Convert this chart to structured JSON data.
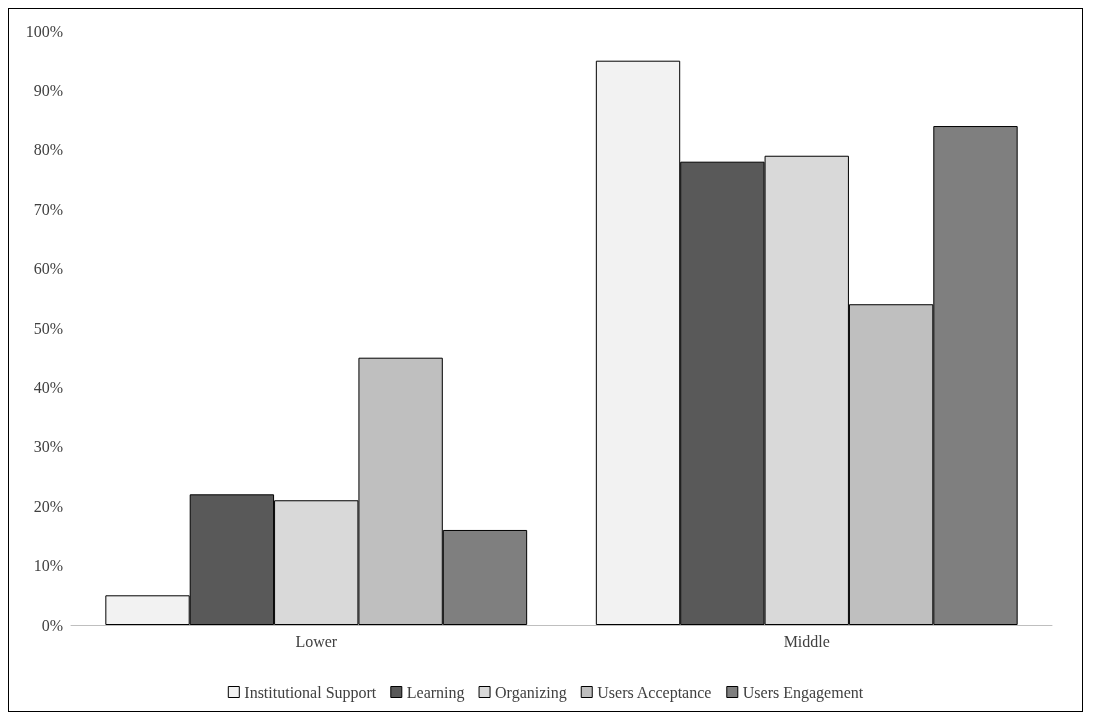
{
  "chart_data": {
    "type": "bar",
    "categories": [
      "Lower",
      "Middle"
    ],
    "series": [
      {
        "name": "Institutional Support",
        "color": "#f2f2f2",
        "values": [
          5,
          95
        ]
      },
      {
        "name": "Learning",
        "color": "#595959",
        "values": [
          22,
          78
        ]
      },
      {
        "name": "Organizing",
        "color": "#d9d9d9",
        "values": [
          21,
          79
        ]
      },
      {
        "name": "Users Acceptance",
        "color": "#bfbfbf",
        "values": [
          45,
          54
        ]
      },
      {
        "name": "Users Engagement",
        "color": "#7f7f7f",
        "values": [
          16,
          84
        ]
      }
    ],
    "ylim": [
      0,
      100
    ],
    "yticks": [
      {
        "value": 0,
        "label": "0%"
      },
      {
        "value": 10,
        "label": "10%"
      },
      {
        "value": 20,
        "label": "20%"
      },
      {
        "value": 30,
        "label": "30%"
      },
      {
        "value": 40,
        "label": "40%"
      },
      {
        "value": 50,
        "label": "50%"
      },
      {
        "value": 60,
        "label": "60%"
      },
      {
        "value": 70,
        "label": "70%"
      },
      {
        "value": 80,
        "label": "80%"
      },
      {
        "value": 90,
        "label": "90%"
      },
      {
        "value": 100,
        "label": "100%"
      }
    ],
    "grid": false,
    "legend": "bottom"
  }
}
